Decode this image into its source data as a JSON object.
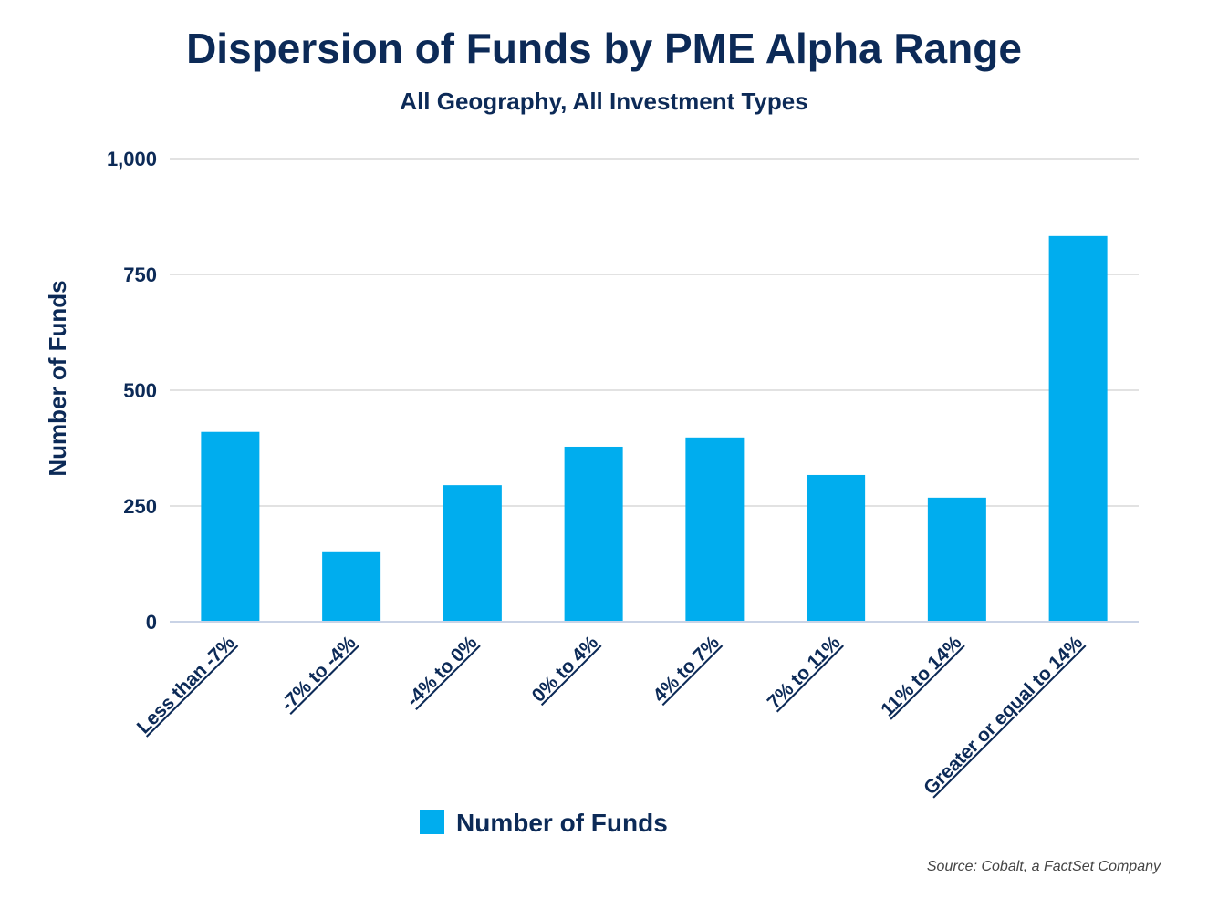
{
  "chart_data": {
    "type": "bar",
    "title": "Dispersion of Funds by PME Alpha Range",
    "subtitle": "All Geography, All Investment Types",
    "xlabel": "",
    "ylabel": "Number of Funds",
    "ylim": [
      0,
      1000
    ],
    "yticks": [
      0,
      250,
      500,
      750,
      1000
    ],
    "ytick_labels": [
      "0",
      "250",
      "500",
      "750",
      "1,000"
    ],
    "grid": true,
    "legend_position": "bottom",
    "categories": [
      "Less than -7%",
      "-7% to -4%",
      "-4% to 0%",
      "0% to 4%",
      "4% to 7%",
      "7% to 11%",
      "11% to 14%",
      "Greater or equal to 14%"
    ],
    "series": [
      {
        "name": "Number of Funds",
        "color": "#00adee",
        "values": [
          410,
          152,
          295,
          378,
          398,
          317,
          268,
          833
        ]
      }
    ],
    "source": "Source: Cobalt, a FactSet Company"
  }
}
